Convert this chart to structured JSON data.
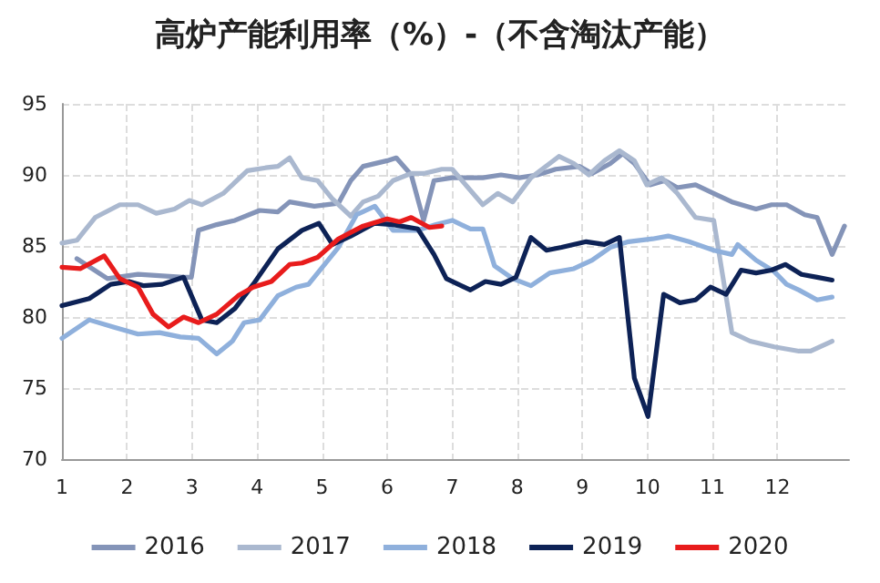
{
  "chart_data": {
    "type": "line",
    "title": "高炉产能利用率（%）-（不含淘汰产能）",
    "xlim": [
      1,
      13.1
    ],
    "xticks": [
      1,
      2,
      3,
      4,
      5,
      6,
      7,
      8,
      9,
      10,
      11,
      12
    ],
    "ylim": [
      70,
      95
    ],
    "yticks": [
      70,
      75,
      80,
      85,
      90,
      95
    ],
    "grid": true,
    "legend": "bottom",
    "marker": "none",
    "line_style": "solid",
    "series": [
      {
        "name": "2016",
        "color": "#8494b8",
        "x": [
          1.23,
          1.7,
          2.17,
          2.87,
          2.99,
          3.1,
          3.38,
          3.66,
          4.04,
          4.32,
          4.5,
          4.88,
          5.25,
          5.44,
          5.63,
          6.0,
          6.14,
          6.37,
          6.56,
          6.72,
          7.0,
          7.47,
          7.75,
          8.03,
          8.31,
          8.59,
          8.96,
          9.15,
          9.43,
          9.62,
          9.8,
          10.04,
          10.27,
          10.46,
          10.74,
          11.02,
          11.3,
          11.67,
          11.91,
          12.14,
          12.42,
          12.61,
          12.84,
          13.03
        ],
        "values": [
          84.1,
          82.7,
          83.0,
          82.8,
          82.8,
          86.1,
          86.5,
          86.8,
          87.5,
          87.4,
          88.1,
          87.8,
          88.0,
          89.6,
          90.6,
          91.0,
          91.2,
          90.0,
          86.8,
          89.6,
          89.8,
          89.8,
          90.0,
          89.8,
          90.0,
          90.4,
          90.6,
          90.1,
          90.8,
          91.5,
          90.8,
          89.3,
          89.6,
          89.1,
          89.3,
          88.7,
          88.1,
          87.6,
          87.9,
          87.9,
          87.2,
          87.0,
          84.4,
          86.4
        ]
      },
      {
        "name": "2017",
        "color": "#aab8cf",
        "x": [
          1.0,
          1.23,
          1.51,
          1.89,
          2.17,
          2.45,
          2.73,
          2.96,
          3.15,
          3.48,
          3.85,
          4.13,
          4.32,
          4.5,
          4.69,
          4.93,
          5.16,
          5.44,
          5.63,
          5.86,
          6.09,
          6.37,
          6.56,
          6.84,
          7.0,
          7.47,
          7.7,
          7.93,
          8.21,
          8.64,
          8.87,
          9.1,
          9.34,
          9.57,
          9.8,
          9.99,
          10.22,
          10.46,
          10.74,
          11.02,
          11.3,
          11.58,
          11.95,
          12.33,
          12.51,
          12.84
        ],
        "values": [
          85.2,
          85.4,
          87.0,
          87.9,
          87.9,
          87.3,
          87.6,
          88.2,
          87.9,
          88.7,
          90.3,
          90.5,
          90.6,
          91.2,
          89.8,
          89.6,
          88.3,
          87.1,
          88.1,
          88.5,
          89.6,
          90.1,
          90.1,
          90.4,
          90.4,
          87.9,
          88.7,
          88.1,
          89.8,
          91.3,
          90.8,
          90.0,
          91.0,
          91.7,
          91.0,
          89.3,
          89.8,
          88.7,
          87.0,
          86.8,
          78.9,
          78.3,
          77.9,
          77.6,
          77.6,
          78.3
        ]
      },
      {
        "name": "2018",
        "color": "#8fb0dc",
        "x": [
          1.0,
          1.42,
          1.79,
          2.17,
          2.5,
          2.82,
          3.1,
          3.38,
          3.62,
          3.8,
          4.04,
          4.32,
          4.6,
          4.79,
          5.02,
          5.25,
          5.53,
          5.81,
          6.09,
          6.47,
          6.75,
          7.0,
          7.28,
          7.47,
          7.65,
          7.93,
          8.21,
          8.5,
          8.87,
          9.15,
          9.43,
          9.71,
          10.08,
          10.32,
          10.64,
          11.02,
          11.3,
          11.39,
          11.67,
          11.95,
          12.14,
          12.33,
          12.61,
          12.84
        ],
        "values": [
          78.5,
          79.8,
          79.3,
          78.8,
          78.9,
          78.6,
          78.5,
          77.4,
          78.3,
          79.6,
          79.8,
          81.5,
          82.1,
          82.3,
          83.6,
          84.9,
          87.2,
          87.8,
          86.1,
          86.1,
          86.5,
          86.8,
          86.2,
          86.2,
          83.6,
          82.7,
          82.2,
          83.1,
          83.4,
          84.0,
          84.9,
          85.3,
          85.5,
          85.7,
          85.3,
          84.7,
          84.4,
          85.1,
          84.0,
          83.2,
          82.3,
          81.9,
          81.2,
          81.4
        ]
      },
      {
        "name": "2019",
        "color": "#0d2256",
        "x": [
          1.0,
          1.42,
          1.75,
          2.03,
          2.26,
          2.54,
          2.87,
          3.15,
          3.38,
          3.66,
          3.94,
          4.32,
          4.69,
          4.95,
          5.16,
          5.44,
          5.81,
          6.09,
          6.47,
          6.72,
          6.91,
          7.28,
          7.51,
          7.75,
          7.98,
          8.21,
          8.45,
          8.68,
          9.06,
          9.34,
          9.57,
          9.8,
          10.01,
          10.25,
          10.5,
          10.74,
          10.97,
          11.21,
          11.44,
          11.67,
          11.91,
          12.12,
          12.37,
          12.61,
          12.84
        ],
        "values": [
          80.8,
          81.3,
          82.3,
          82.5,
          82.2,
          82.3,
          82.8,
          79.8,
          79.6,
          80.6,
          82.3,
          84.8,
          86.1,
          86.6,
          85.1,
          85.7,
          86.6,
          86.5,
          86.2,
          84.4,
          82.7,
          81.9,
          82.5,
          82.3,
          82.8,
          85.6,
          84.7,
          84.9,
          85.3,
          85.1,
          85.6,
          75.7,
          73.0,
          81.6,
          81.0,
          81.2,
          82.1,
          81.6,
          83.3,
          83.1,
          83.3,
          83.7,
          83.0,
          82.8,
          82.6
        ]
      },
      {
        "name": "2020",
        "color": "#e81c1c",
        "x": [
          1.0,
          1.28,
          1.65,
          1.89,
          2.17,
          2.4,
          2.64,
          2.87,
          3.1,
          3.38,
          3.71,
          3.94,
          4.22,
          4.5,
          4.69,
          4.93,
          5.25,
          5.63,
          6.0,
          6.19,
          6.37,
          6.65,
          6.84
        ],
        "values": [
          83.5,
          83.4,
          84.3,
          82.7,
          82.1,
          80.2,
          79.3,
          80.0,
          79.6,
          80.2,
          81.5,
          82.1,
          82.5,
          83.7,
          83.8,
          84.2,
          85.5,
          86.4,
          86.9,
          86.7,
          87.0,
          86.3,
          86.4
        ]
      }
    ]
  }
}
